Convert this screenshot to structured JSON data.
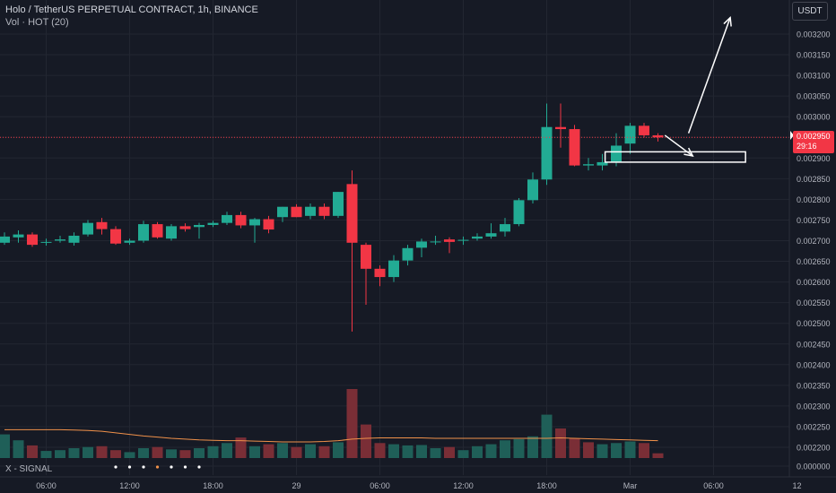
{
  "header": {
    "symbol_line": "Holo / TetherUS PERPETUAL CONTRACT, 1h, BINANCE",
    "volume_line": "Vol · HOT (20)"
  },
  "unit_label": "USDT",
  "signal_label": "X - SIGNAL",
  "price_tag": {
    "value": "0.002950",
    "countdown": "29:16"
  },
  "colors": {
    "background": "#161a25",
    "up": "#22ab94",
    "down": "#f23645",
    "volume_up": "#1f5f58",
    "volume_down": "#7a2e36",
    "volume_ma": "#f0914a",
    "grid": "#222631",
    "axis_text": "#b2b5be",
    "last_price_line": "#f23645"
  },
  "chart_data": {
    "type": "candlestick",
    "title": "Holo / TetherUS PERPETUAL CONTRACT, 1h, BINANCE",
    "y_axis": {
      "ticks": [
        "0.003200",
        "0.003150",
        "0.003100",
        "0.003050",
        "0.003000",
        "0.002950",
        "0.002900",
        "0.002850",
        "0.002800",
        "0.002750",
        "0.002700",
        "0.002650",
        "0.002600",
        "0.002550",
        "0.002500",
        "0.002450",
        "0.002400",
        "0.002350",
        "0.002300",
        "0.002250",
        "0.002200",
        "0.000000"
      ],
      "position": "right"
    },
    "x_axis": {
      "ticks": [
        {
          "label": "06:00",
          "bar": 3
        },
        {
          "label": "12:00",
          "bar": 9
        },
        {
          "label": "18:00",
          "bar": 15
        },
        {
          "label": "29",
          "bar": 21
        },
        {
          "label": "06:00",
          "bar": 27
        },
        {
          "label": "12:00",
          "bar": 33
        },
        {
          "label": "18:00",
          "bar": 39
        },
        {
          "label": "Mar",
          "bar": 45
        },
        {
          "label": "06:00",
          "bar": 51
        },
        {
          "label": "12",
          "bar": 57
        }
      ]
    },
    "candles": [
      {
        "o": 0.002695,
        "h": 0.00272,
        "l": 0.00269,
        "c": 0.00271
      },
      {
        "o": 0.002708,
        "h": 0.002725,
        "l": 0.002695,
        "c": 0.002715
      },
      {
        "o": 0.002715,
        "h": 0.00272,
        "l": 0.002685,
        "c": 0.00269
      },
      {
        "o": 0.002695,
        "h": 0.002705,
        "l": 0.002688,
        "c": 0.002697
      },
      {
        "o": 0.0027,
        "h": 0.002712,
        "l": 0.002695,
        "c": 0.002703
      },
      {
        "o": 0.002695,
        "h": 0.00272,
        "l": 0.002688,
        "c": 0.002712
      },
      {
        "o": 0.002715,
        "h": 0.00275,
        "l": 0.00271,
        "c": 0.002743
      },
      {
        "o": 0.002745,
        "h": 0.002755,
        "l": 0.002715,
        "c": 0.002728
      },
      {
        "o": 0.002728,
        "h": 0.002735,
        "l": 0.00269,
        "c": 0.002693
      },
      {
        "o": 0.002695,
        "h": 0.002705,
        "l": 0.00269,
        "c": 0.0027
      },
      {
        "o": 0.0027,
        "h": 0.002748,
        "l": 0.002695,
        "c": 0.00274
      },
      {
        "o": 0.00274,
        "h": 0.002745,
        "l": 0.002705,
        "c": 0.002708
      },
      {
        "o": 0.002705,
        "h": 0.00274,
        "l": 0.0027,
        "c": 0.002735
      },
      {
        "o": 0.002735,
        "h": 0.002742,
        "l": 0.002722,
        "c": 0.002728
      },
      {
        "o": 0.002733,
        "h": 0.002743,
        "l": 0.002705,
        "c": 0.002738
      },
      {
        "o": 0.002738,
        "h": 0.002748,
        "l": 0.002733,
        "c": 0.002743
      },
      {
        "o": 0.002743,
        "h": 0.00277,
        "l": 0.002738,
        "c": 0.002762
      },
      {
        "o": 0.002762,
        "h": 0.00277,
        "l": 0.00273,
        "c": 0.002737
      },
      {
        "o": 0.002737,
        "h": 0.002755,
        "l": 0.002695,
        "c": 0.002752
      },
      {
        "o": 0.002752,
        "h": 0.00276,
        "l": 0.002718,
        "c": 0.002727
      },
      {
        "o": 0.002757,
        "h": 0.002782,
        "l": 0.002745,
        "c": 0.002782
      },
      {
        "o": 0.002782,
        "h": 0.002788,
        "l": 0.002757,
        "c": 0.002757
      },
      {
        "o": 0.00276,
        "h": 0.00279,
        "l": 0.002752,
        "c": 0.002782
      },
      {
        "o": 0.002782,
        "h": 0.00279,
        "l": 0.002752,
        "c": 0.00276
      },
      {
        "o": 0.00276,
        "h": 0.002818,
        "l": 0.002755,
        "c": 0.002818
      },
      {
        "o": 0.002837,
        "h": 0.00287,
        "l": 0.00248,
        "c": 0.002695
      },
      {
        "o": 0.00269,
        "h": 0.002695,
        "l": 0.002545,
        "c": 0.002632
      },
      {
        "o": 0.002632,
        "h": 0.00264,
        "l": 0.00259,
        "c": 0.002612
      },
      {
        "o": 0.002612,
        "h": 0.002665,
        "l": 0.0026,
        "c": 0.002652
      },
      {
        "o": 0.002652,
        "h": 0.00269,
        "l": 0.00264,
        "c": 0.002682
      },
      {
        "o": 0.002683,
        "h": 0.002705,
        "l": 0.00266,
        "c": 0.002698
      },
      {
        "o": 0.002698,
        "h": 0.002712,
        "l": 0.00269,
        "c": 0.002698
      },
      {
        "o": 0.002703,
        "h": 0.002708,
        "l": 0.00267,
        "c": 0.002697
      },
      {
        "o": 0.0027,
        "h": 0.00271,
        "l": 0.00269,
        "c": 0.002702
      },
      {
        "o": 0.002705,
        "h": 0.002718,
        "l": 0.0027,
        "c": 0.00271
      },
      {
        "o": 0.00271,
        "h": 0.002742,
        "l": 0.002705,
        "c": 0.002718
      },
      {
        "o": 0.002722,
        "h": 0.002755,
        "l": 0.00271,
        "c": 0.00274
      },
      {
        "o": 0.00274,
        "h": 0.002803,
        "l": 0.002735,
        "c": 0.002798
      },
      {
        "o": 0.002798,
        "h": 0.002865,
        "l": 0.00279,
        "c": 0.002848
      },
      {
        "o": 0.002848,
        "h": 0.003032,
        "l": 0.002835,
        "c": 0.002975
      },
      {
        "o": 0.002975,
        "h": 0.003032,
        "l": 0.002925,
        "c": 0.00297
      },
      {
        "o": 0.00297,
        "h": 0.00298,
        "l": 0.00288,
        "c": 0.002882
      },
      {
        "o": 0.002882,
        "h": 0.0029,
        "l": 0.00287,
        "c": 0.002885
      },
      {
        "o": 0.002882,
        "h": 0.00291,
        "l": 0.00287,
        "c": 0.00289
      },
      {
        "o": 0.00289,
        "h": 0.00296,
        "l": 0.00288,
        "c": 0.00293
      },
      {
        "o": 0.002935,
        "h": 0.002985,
        "l": 0.00291,
        "c": 0.002978
      },
      {
        "o": 0.002978,
        "h": 0.002985,
        "l": 0.00295,
        "c": 0.002955
      },
      {
        "o": 0.002955,
        "h": 0.00296,
        "l": 0.00294,
        "c": 0.00295
      }
    ],
    "volume": [
      {
        "v": 0.6,
        "up": true
      },
      {
        "v": 0.45,
        "up": true
      },
      {
        "v": 0.32,
        "up": false
      },
      {
        "v": 0.18,
        "up": true
      },
      {
        "v": 0.2,
        "up": true
      },
      {
        "v": 0.25,
        "up": true
      },
      {
        "v": 0.28,
        "up": true
      },
      {
        "v": 0.3,
        "up": false
      },
      {
        "v": 0.2,
        "up": false
      },
      {
        "v": 0.15,
        "up": true
      },
      {
        "v": 0.25,
        "up": true
      },
      {
        "v": 0.28,
        "up": false
      },
      {
        "v": 0.22,
        "up": true
      },
      {
        "v": 0.2,
        "up": false
      },
      {
        "v": 0.25,
        "up": true
      },
      {
        "v": 0.3,
        "up": true
      },
      {
        "v": 0.38,
        "up": true
      },
      {
        "v": 0.52,
        "up": false
      },
      {
        "v": 0.3,
        "up": true
      },
      {
        "v": 0.35,
        "up": false
      },
      {
        "v": 0.38,
        "up": true
      },
      {
        "v": 0.28,
        "up": false
      },
      {
        "v": 0.35,
        "up": true
      },
      {
        "v": 0.3,
        "up": false
      },
      {
        "v": 0.4,
        "up": true
      },
      {
        "v": 1.75,
        "up": false
      },
      {
        "v": 0.85,
        "up": false
      },
      {
        "v": 0.38,
        "up": false
      },
      {
        "v": 0.35,
        "up": true
      },
      {
        "v": 0.32,
        "up": true
      },
      {
        "v": 0.33,
        "up": true
      },
      {
        "v": 0.25,
        "up": true
      },
      {
        "v": 0.28,
        "up": false
      },
      {
        "v": 0.2,
        "up": true
      },
      {
        "v": 0.3,
        "up": true
      },
      {
        "v": 0.35,
        "up": true
      },
      {
        "v": 0.45,
        "up": true
      },
      {
        "v": 0.48,
        "up": true
      },
      {
        "v": 0.55,
        "up": true
      },
      {
        "v": 1.1,
        "up": true
      },
      {
        "v": 0.75,
        "up": false
      },
      {
        "v": 0.5,
        "up": false
      },
      {
        "v": 0.4,
        "up": false
      },
      {
        "v": 0.35,
        "up": true
      },
      {
        "v": 0.38,
        "up": true
      },
      {
        "v": 0.42,
        "up": true
      },
      {
        "v": 0.38,
        "up": false
      },
      {
        "v": 0.12,
        "up": false
      }
    ],
    "volume_ma": [
      0.72,
      0.72,
      0.72,
      0.72,
      0.72,
      0.71,
      0.7,
      0.68,
      0.64,
      0.6,
      0.56,
      0.53,
      0.5,
      0.48,
      0.46,
      0.45,
      0.44,
      0.44,
      0.43,
      0.42,
      0.41,
      0.41,
      0.41,
      0.42,
      0.44,
      0.48,
      0.5,
      0.51,
      0.51,
      0.51,
      0.51,
      0.5,
      0.5,
      0.5,
      0.5,
      0.5,
      0.5,
      0.5,
      0.5,
      0.5,
      0.51,
      0.5,
      0.49,
      0.48,
      0.47,
      0.46,
      0.45,
      0.44
    ],
    "annotations": {
      "rectangle": {
        "bar_from": 43.2,
        "bar_to": 53.3,
        "price_top": 0.002915,
        "price_bottom": 0.00289
      },
      "arrow_up": {
        "from": {
          "bar": 49.2,
          "price": 0.00296
        },
        "to": {
          "bar": 52.2,
          "price": 0.00324
        }
      },
      "arrow_right": {
        "from": {
          "bar": 47.5,
          "price": 0.002955
        },
        "to": {
          "bar": 49.5,
          "price": 0.002905
        }
      },
      "last_price": 0.00295
    },
    "signal_dots": [
      8,
      9,
      10,
      11,
      12,
      13,
      14
    ],
    "signal_dot_colors": [
      "#ffffff",
      "#ffffff",
      "#ffffff",
      "#f0914a",
      "#ffffff",
      "#ffffff",
      "#ffffff"
    ]
  }
}
